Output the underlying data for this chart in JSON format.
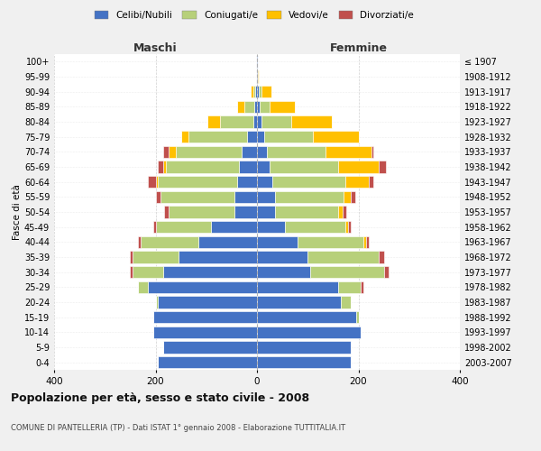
{
  "age_groups": [
    "0-4",
    "5-9",
    "10-14",
    "15-19",
    "20-24",
    "25-29",
    "30-34",
    "35-39",
    "40-44",
    "45-49",
    "50-54",
    "55-59",
    "60-64",
    "65-69",
    "70-74",
    "75-79",
    "80-84",
    "85-89",
    "90-94",
    "95-99",
    "100+"
  ],
  "birth_years": [
    "2003-2007",
    "1998-2002",
    "1993-1997",
    "1988-1992",
    "1983-1987",
    "1978-1982",
    "1973-1977",
    "1968-1972",
    "1963-1967",
    "1958-1962",
    "1953-1957",
    "1948-1952",
    "1943-1947",
    "1938-1942",
    "1933-1937",
    "1928-1932",
    "1923-1927",
    "1918-1922",
    "1913-1917",
    "1908-1912",
    "≤ 1907"
  ],
  "colors": {
    "celibi": "#4472c4",
    "coniugati": "#b7d07a",
    "vedovi": "#ffc000",
    "divorziati": "#c0504d"
  },
  "males": {
    "celibi": [
      195,
      185,
      205,
      205,
      195,
      215,
      185,
      155,
      115,
      90,
      45,
      45,
      40,
      35,
      30,
      20,
      8,
      5,
      3,
      2,
      1
    ],
    "coniugati": [
      0,
      0,
      0,
      0,
      5,
      20,
      60,
      90,
      115,
      110,
      130,
      145,
      155,
      145,
      130,
      115,
      65,
      20,
      5,
      0,
      0
    ],
    "vedovi": [
      0,
      0,
      0,
      0,
      0,
      0,
      0,
      0,
      0,
      0,
      0,
      0,
      5,
      5,
      15,
      15,
      25,
      15,
      5,
      0,
      0
    ],
    "divorziati": [
      0,
      0,
      0,
      0,
      0,
      0,
      5,
      5,
      5,
      5,
      8,
      10,
      15,
      10,
      10,
      0,
      0,
      0,
      0,
      0,
      0
    ]
  },
  "females": {
    "celibi": [
      185,
      185,
      205,
      195,
      165,
      160,
      105,
      100,
      80,
      55,
      35,
      35,
      30,
      25,
      20,
      15,
      8,
      5,
      3,
      2,
      1
    ],
    "coniugati": [
      0,
      0,
      0,
      5,
      20,
      45,
      145,
      140,
      130,
      120,
      125,
      135,
      145,
      135,
      115,
      95,
      60,
      20,
      5,
      0,
      0
    ],
    "vedovi": [
      0,
      0,
      0,
      0,
      0,
      0,
      0,
      0,
      5,
      5,
      8,
      15,
      45,
      80,
      90,
      90,
      80,
      50,
      20,
      2,
      0
    ],
    "divorziati": [
      0,
      0,
      0,
      0,
      0,
      5,
      10,
      10,
      5,
      5,
      8,
      8,
      10,
      15,
      5,
      0,
      0,
      0,
      0,
      0,
      0
    ]
  },
  "title": "Popolazione per età, sesso e stato civile - 2008",
  "subtitle": "COMUNE DI PANTELLERIA (TP) - Dati ISTAT 1° gennaio 2008 - Elaborazione TUTTITALIA.IT",
  "xlabel_left": "Maschi",
  "xlabel_right": "Femmine",
  "ylabel_left": "Fasce di età",
  "xlim": 400,
  "legend_labels": [
    "Celibi/Nubili",
    "Coniugati/e",
    "Vedovi/e",
    "Divorziati/e"
  ],
  "bg_color": "#f0f0f0",
  "plot_bg": "#ffffff",
  "grid_color": "#cccccc"
}
